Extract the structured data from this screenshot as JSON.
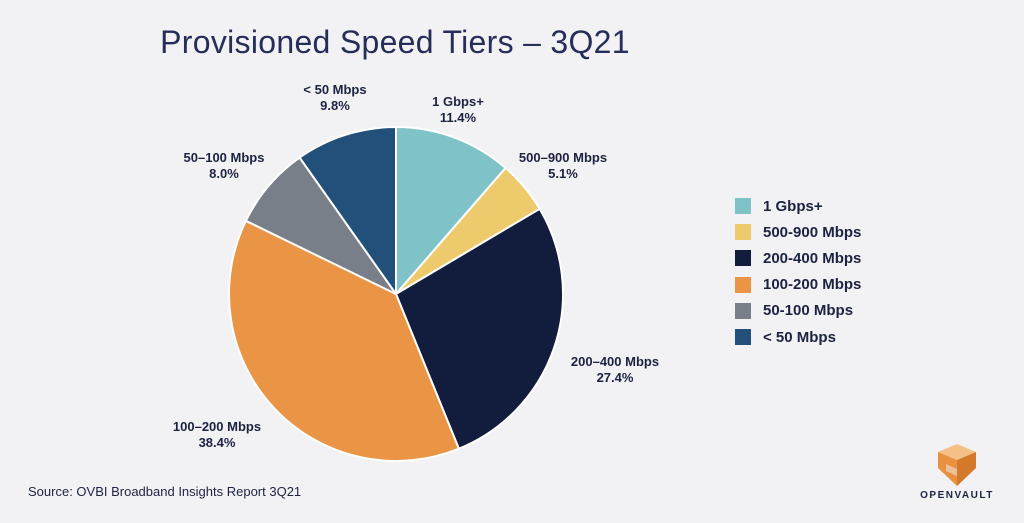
{
  "chart_data": {
    "type": "pie",
    "title": "Provisioned Speed Tiers – 3Q21",
    "slices": [
      {
        "label": "1 Gbps+",
        "value": 11.4,
        "value_label": "11.4%",
        "color": "#7fc3c8"
      },
      {
        "label": "500–900 Mbps",
        "value": 5.1,
        "value_label": "5.1%",
        "color": "#edca6c"
      },
      {
        "label": "200–400 Mbps",
        "value": 27.4,
        "value_label": "27.4%",
        "color": "#121d3e"
      },
      {
        "label": "100–200 Mbps",
        "value": 38.4,
        "value_label": "38.4%",
        "color": "#e99545"
      },
      {
        "label": "50–100 Mbps",
        "value": 8.0,
        "value_label": "8.0%",
        "color": "#797f89"
      },
      {
        "label": "< 50 Mbps",
        "value": 9.8,
        "value_label": "9.8%",
        "color": "#23507a"
      }
    ],
    "legend": {
      "placement": "right",
      "entries": [
        "1 Gbps+",
        "500-900 Mbps",
        "200-400 Mbps",
        "100-200 Mbps",
        "50-100 Mbps",
        "< 50 Mbps"
      ]
    }
  },
  "source": "Source: OVBI Broadband Insights Report 3Q21",
  "logo": {
    "text": "OPENVAULT",
    "icon": "openvault-logo-icon"
  }
}
